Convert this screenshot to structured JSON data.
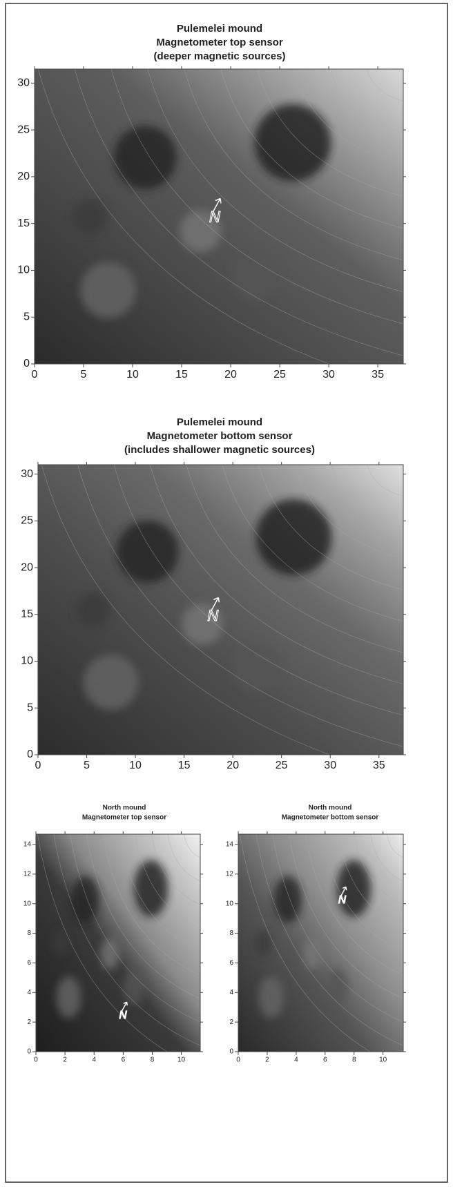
{
  "chart_data": [
    {
      "type": "contour",
      "title": [
        "Pulemelei mound",
        "Magnetometer top sensor",
        "(deeper magnetic sources)"
      ],
      "xlim": [
        0,
        37.6
      ],
      "ylim": [
        0,
        31.5
      ],
      "xticks": [
        0,
        5,
        10,
        15,
        20,
        25,
        30,
        35
      ],
      "yticks": [
        0,
        5,
        10,
        15,
        20,
        25,
        30
      ],
      "annotation": "N"
    },
    {
      "type": "contour",
      "title": [
        "Pulemelei mound",
        "Magnetometer bottom sensor",
        "(includes shallower magnetic sources)"
      ],
      "xlim": [
        0,
        37.5
      ],
      "ylim": [
        0,
        31
      ],
      "xticks": [
        0,
        5,
        10,
        15,
        20,
        25,
        30,
        35
      ],
      "yticks": [
        0,
        5,
        10,
        15,
        20,
        25,
        30
      ],
      "annotation": "N"
    },
    {
      "type": "contour",
      "title": [
        "North mound",
        "Magnetometer top sensor"
      ],
      "xlim": [
        0,
        11.3
      ],
      "ylim": [
        0,
        14.7
      ],
      "xticks": [
        0,
        2,
        4,
        6,
        8,
        10
      ],
      "yticks": [
        0,
        2,
        4,
        6,
        8,
        10,
        12,
        14
      ],
      "annotation": "N"
    },
    {
      "type": "contour",
      "title": [
        "North mound",
        "Magnetometer bottom sensor"
      ],
      "xlim": [
        0,
        11.4
      ],
      "ylim": [
        0,
        14.7
      ],
      "xticks": [
        0,
        2,
        4,
        6,
        8,
        10
      ],
      "yticks": [
        0,
        2,
        4,
        6,
        8,
        10,
        12,
        14
      ],
      "annotation": "N"
    }
  ]
}
